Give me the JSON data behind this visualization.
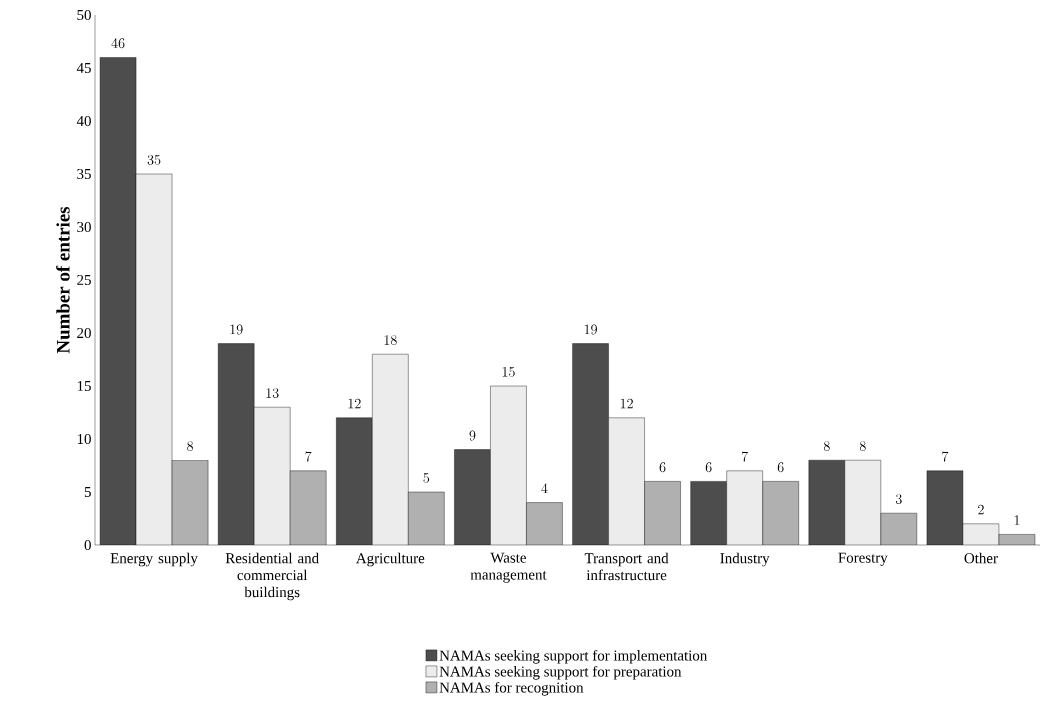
{
  "chart_data": {
    "type": "bar",
    "ylabel": "Number of entries",
    "categories": [
      "Energy supply",
      "Residential and commercial buildings",
      "Agriculture",
      "Waste management",
      "Transport and infrastructure",
      "Industry",
      "Forestry",
      "Other"
    ],
    "series": [
      {
        "name": "NAMAs seeking support for implementation",
        "color": "#4d4d4d",
        "values": [
          46,
          19,
          12,
          9,
          19,
          6,
          8,
          7
        ]
      },
      {
        "name": "NAMAs seeking support for preparation",
        "color": "#ececec",
        "values": [
          35,
          13,
          18,
          15,
          12,
          7,
          8,
          2
        ]
      },
      {
        "name": "NAMAs for recognition",
        "color": "#b0b0b0",
        "values": [
          8,
          7,
          5,
          4,
          6,
          6,
          3,
          1
        ]
      }
    ],
    "ylim": [
      0,
      50
    ],
    "yticks": [
      0,
      5,
      10,
      15,
      20,
      25,
      30,
      35,
      40,
      45,
      50
    ],
    "data_labels": true,
    "grid": false,
    "legend": "bottom"
  }
}
